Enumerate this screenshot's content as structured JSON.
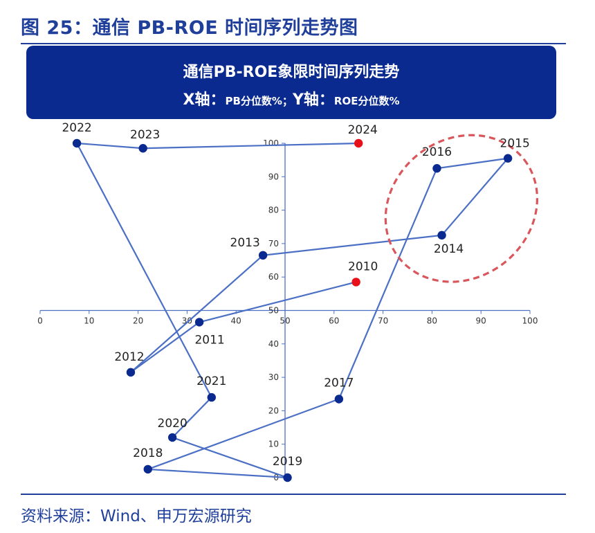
{
  "figure_title": "图 25：通信 PB-ROE 时间序列走势图",
  "source": "资料来源：Wind、申万宏源研究",
  "colors": {
    "navy": "#0a2a8f",
    "line": "#4a6fc4",
    "point": "#0a2a8f",
    "highlight": "#e8111a",
    "circle": "#d9575c"
  },
  "chart_data": {
    "type": "scatter",
    "title": "通信PB-ROE象限时间序列走势",
    "x_axis_name": "X轴：",
    "x_axis_desc": "PB分位数%",
    "separator": "；",
    "y_axis_name": "Y轴：",
    "y_axis_desc": "ROE分位数%",
    "xlim": [
      0,
      100
    ],
    "ylim": [
      0,
      100
    ],
    "x_ticks": [
      0,
      10,
      20,
      30,
      40,
      50,
      60,
      70,
      80,
      90,
      100
    ],
    "y_ticks": [
      0,
      10,
      20,
      30,
      40,
      50,
      60,
      70,
      80,
      90,
      100
    ],
    "axis_cross": {
      "x": 50,
      "y": 50
    },
    "connected": true,
    "points": [
      {
        "label": "2010",
        "x": 64.5,
        "y": 58.5,
        "highlight": true
      },
      {
        "label": "2011",
        "x": 32.5,
        "y": 46.5,
        "highlight": false
      },
      {
        "label": "2012",
        "x": 18.5,
        "y": 31.5,
        "highlight": false
      },
      {
        "label": "2013",
        "x": 45.5,
        "y": 66.5,
        "highlight": false
      },
      {
        "label": "2014",
        "x": 82,
        "y": 72.5,
        "highlight": false
      },
      {
        "label": "2015",
        "x": 95.5,
        "y": 95.5,
        "highlight": false
      },
      {
        "label": "2016",
        "x": 81,
        "y": 92.5,
        "highlight": false
      },
      {
        "label": "2017",
        "x": 61,
        "y": 23.5,
        "highlight": false
      },
      {
        "label": "2018",
        "x": 22,
        "y": 2.5,
        "highlight": false
      },
      {
        "label": "2019",
        "x": 50.5,
        "y": 0,
        "highlight": false
      },
      {
        "label": "2020",
        "x": 27,
        "y": 12,
        "highlight": false
      },
      {
        "label": "2021",
        "x": 35,
        "y": 24,
        "highlight": false
      },
      {
        "label": "2022",
        "x": 7.5,
        "y": 100,
        "highlight": false
      },
      {
        "label": "2023",
        "x": 21,
        "y": 98.5,
        "highlight": false
      },
      {
        "label": "2024",
        "x": 65,
        "y": 100,
        "highlight": true
      }
    ],
    "highlight_region": {
      "center_x": 86,
      "center_y": 80.5,
      "years": [
        "2014",
        "2015",
        "2016"
      ],
      "style": "dashed-ellipse"
    }
  }
}
